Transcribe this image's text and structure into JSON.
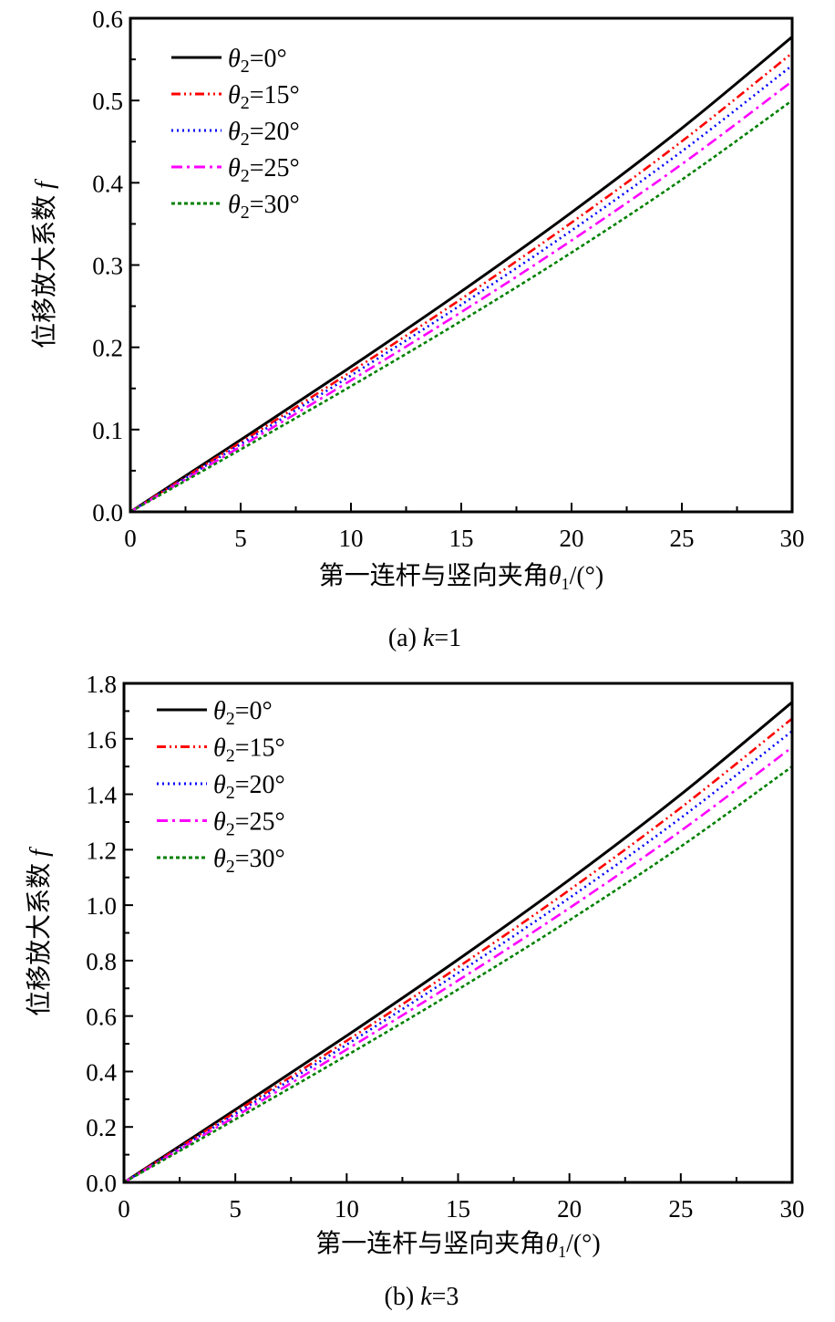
{
  "chart_data": [
    {
      "type": "line",
      "caption": "(a) k=1",
      "caption_prefix": "(a) ",
      "caption_var": "k",
      "caption_rest": "=1",
      "xlabel": "第一连杆与竖向夹角θ1/(°)",
      "ylabel": "位移放大系数 f",
      "xlim": [
        0,
        30
      ],
      "ylim": [
        0,
        0.6
      ],
      "xticks": [
        "0",
        "5",
        "10",
        "15",
        "20",
        "25",
        "30"
      ],
      "yticks": [
        "0.0",
        "0.1",
        "0.2",
        "0.3",
        "0.4",
        "0.5",
        "0.6"
      ],
      "legend_position": "top-left",
      "x": [
        0,
        5,
        10,
        15,
        20,
        25,
        30
      ],
      "series": [
        {
          "name": "θ2=0°",
          "color": "#000000",
          "style": "solid",
          "values": [
            0,
            0.0875,
            0.1763,
            0.2679,
            0.364,
            0.4663,
            0.5774
          ]
        },
        {
          "name": "θ2=15°",
          "color": "#ff0000",
          "style": "dash-dot-dot",
          "values": [
            0,
            0.0845,
            0.1703,
            0.2588,
            0.3516,
            0.4504,
            0.5577
          ]
        },
        {
          "name": "θ2=20°",
          "color": "#0000ff",
          "style": "dot",
          "values": [
            0,
            0.0822,
            0.1657,
            0.2518,
            0.342,
            0.4382,
            0.5426
          ]
        },
        {
          "name": "θ2=25°",
          "color": "#ff00ff",
          "style": "dash-dot",
          "values": [
            0,
            0.0793,
            0.1598,
            0.2428,
            0.3299,
            0.4226,
            0.5233
          ]
        },
        {
          "name": "θ2=30°",
          "color": "#008000",
          "style": "short-dash",
          "values": [
            0,
            0.0758,
            0.1527,
            0.232,
            0.3152,
            0.4038,
            0.5
          ]
        }
      ]
    },
    {
      "type": "line",
      "caption": "(b) k=3",
      "caption_prefix": "(b) ",
      "caption_var": "k",
      "caption_rest": "=3",
      "xlabel": "第一连杆与竖向夹角θ1/(°)",
      "ylabel": "位移放大系数 f",
      "xlim": [
        0,
        30
      ],
      "ylim": [
        0,
        1.8
      ],
      "xticks": [
        "0",
        "5",
        "10",
        "15",
        "20",
        "25",
        "30"
      ],
      "yticks": [
        "0.0",
        "0.2",
        "0.4",
        "0.6",
        "0.8",
        "1.0",
        "1.2",
        "1.4",
        "1.6",
        "1.8"
      ],
      "legend_position": "top-left",
      "x": [
        0,
        5,
        10,
        15,
        20,
        25,
        30
      ],
      "series": [
        {
          "name": "θ2=0°",
          "color": "#000000",
          "style": "solid",
          "values": [
            0,
            0.2625,
            0.5289,
            0.8038,
            1.0919,
            1.399,
            1.7321
          ]
        },
        {
          "name": "θ2=15°",
          "color": "#ff0000",
          "style": "dash-dot-dot",
          "values": [
            0,
            0.2535,
            0.5109,
            0.7764,
            1.0547,
            1.3513,
            1.673
          ]
        },
        {
          "name": "θ2=20°",
          "color": "#0000ff",
          "style": "dot",
          "values": [
            0,
            0.2466,
            0.497,
            0.7553,
            1.0261,
            1.3146,
            1.6277
          ]
        },
        {
          "name": "θ2=25°",
          "color": "#ff00ff",
          "style": "dash-dot",
          "values": [
            0,
            0.2379,
            0.4794,
            0.7284,
            0.9897,
            1.2679,
            1.5698
          ]
        },
        {
          "name": "θ2=30°",
          "color": "#008000",
          "style": "short-dash",
          "values": [
            0,
            0.2273,
            0.458,
            0.696,
            0.9457,
            1.2114,
            1.5
          ]
        }
      ]
    }
  ]
}
